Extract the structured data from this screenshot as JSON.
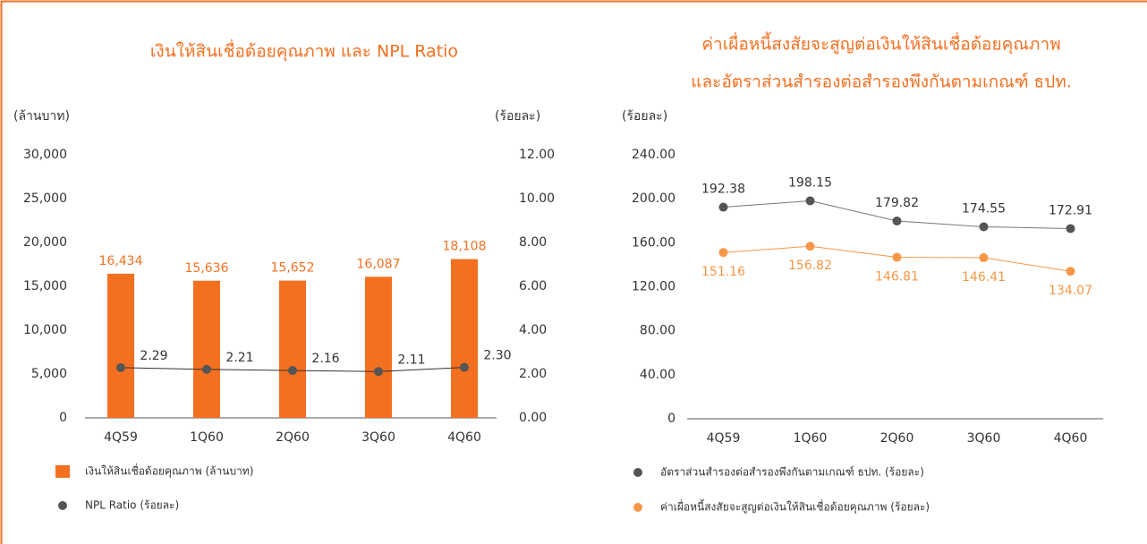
{
  "chart_data": [
    {
      "type": "bar",
      "title": [
        "เงินให้สินเชื่อด้อยคุณภาพ และ NPL Ratio"
      ],
      "y_label": "(ล้านบาท)",
      "y2_label": "(ร้อยละ)",
      "categories": [
        "4Q59",
        "1Q60",
        "2Q60",
        "3Q60",
        "4Q60"
      ],
      "series": [
        {
          "name": "เงินให้สินเชื่อด้อยคุณภาพ (ล้านบาท)",
          "type": "bar",
          "color": "#f37021",
          "values": [
            16434,
            15636,
            15652,
            16087,
            18108
          ],
          "value_labels": [
            "16,434",
            "15,636",
            "15,652",
            "16,087",
            "18,108"
          ]
        },
        {
          "name": "NPL Ratio (ร้อยละ)",
          "type": "line",
          "axis": "y2",
          "color": "#555555",
          "values": [
            2.29,
            2.21,
            2.16,
            2.11,
            2.3
          ],
          "value_labels": [
            "2.29",
            "2.21",
            "2.16",
            "2.11",
            "2.30"
          ]
        }
      ],
      "ylim": [
        0,
        30000
      ],
      "yticks": [
        0,
        {
          "value": 5000,
          "label": "5,000"
        },
        {
          "value": 10000,
          "label": "10,000"
        },
        {
          "value": 15000,
          "label": "15,000"
        },
        {
          "value": 20000,
          "label": "20,000"
        },
        {
          "value": 25000,
          "label": "25,000"
        },
        {
          "value": 30000,
          "label": "30,000"
        }
      ],
      "y2lim": [
        0,
        12
      ],
      "y2ticks": [
        {
          "value": 0,
          "label": "0.00"
        },
        {
          "value": 2,
          "label": "2.00"
        },
        {
          "value": 4,
          "label": "4.00"
        },
        {
          "value": 6,
          "label": "6.00"
        },
        {
          "value": 8,
          "label": "8.00"
        },
        {
          "value": 10,
          "label": "10.00"
        },
        {
          "value": 12,
          "label": "12.00"
        }
      ],
      "grid": false
    },
    {
      "type": "line",
      "title": [
        "ค่าเผื่อหนี้สงสัยจะสูญต่อเงินให้สินเชื่อด้อยคุณภาพ",
        "และอัตราส่วนสำรองต่อสำรองพึงกันตามเกณฑ์ ธปท."
      ],
      "y_label": "(ร้อยละ)",
      "categories": [
        "4Q59",
        "1Q60",
        "2Q60",
        "3Q60",
        "4Q60"
      ],
      "series": [
        {
          "name": "อัตราส่วนสำรองต่อสำรองพึงกันตามเกณฑ์ ธปท. (ร้อยละ)",
          "type": "line",
          "color": "#555555",
          "values": [
            192.38,
            198.15,
            179.82,
            174.55,
            172.91
          ]
        },
        {
          "name": "ค่าเผื่อหนี้สงสัยจะสูญต่อเงินให้สินเชื่อด้อยคุณภาพ (ร้อยละ)",
          "type": "line",
          "color": "#f79646",
          "values": [
            151.16,
            156.82,
            146.81,
            146.41,
            134.07
          ]
        }
      ],
      "ylim": [
        0,
        240
      ],
      "yticks": [
        0,
        {
          "value": 40,
          "label": "40.00"
        },
        {
          "value": 80,
          "label": "80.00"
        },
        {
          "value": 120,
          "label": "120.00"
        },
        {
          "value": 160,
          "label": "160.00"
        },
        {
          "value": 200,
          "label": "200.00"
        },
        {
          "value": 240,
          "label": "240.00"
        }
      ],
      "grid": false
    }
  ]
}
